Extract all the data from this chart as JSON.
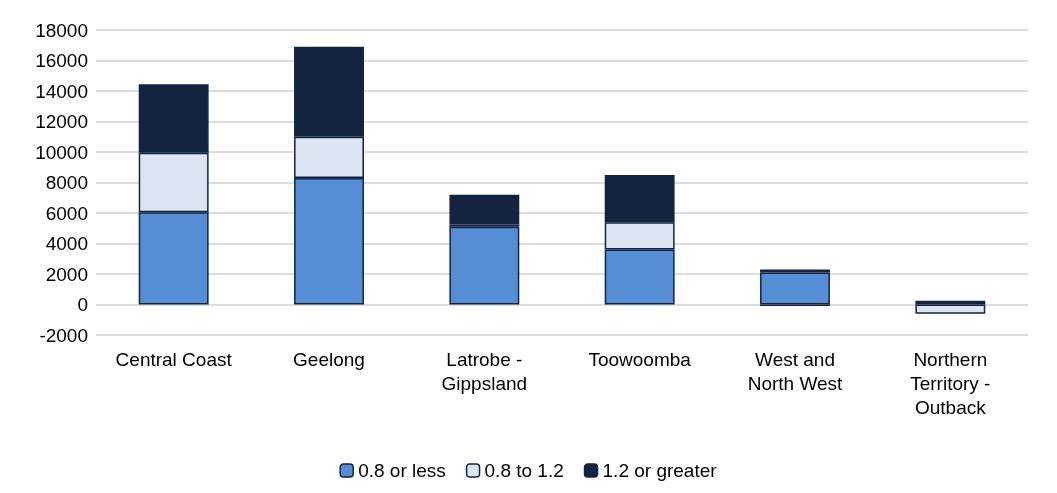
{
  "chart_data": {
    "type": "bar",
    "stacked": true,
    "categories": [
      "Central Coast",
      "Geelong",
      "Latrobe -\nGippsland",
      "Toowoomba",
      "West and\nNorth West",
      "Northern\nTerritory -\nOutback"
    ],
    "series": [
      {
        "name": "0.8 or less",
        "color": "#558ed5",
        "values": [
          6050,
          8300,
          5100,
          3600,
          2100,
          null
        ]
      },
      {
        "name": "0.8 to 1.2",
        "color": "#dce6f2",
        "values": [
          3900,
          2700,
          150,
          1800,
          -100,
          -600
        ]
      },
      {
        "name": "1.2 or greater",
        "color": "#12243f",
        "values": [
          4500,
          5900,
          1950,
          3100,
          200,
          250
        ]
      }
    ],
    "ylim": [
      -2000,
      18000
    ],
    "yticks": [
      -2000,
      0,
      2000,
      4000,
      6000,
      8000,
      10000,
      12000,
      14000,
      16000,
      18000
    ],
    "grid": "y",
    "legend": "bottom"
  }
}
